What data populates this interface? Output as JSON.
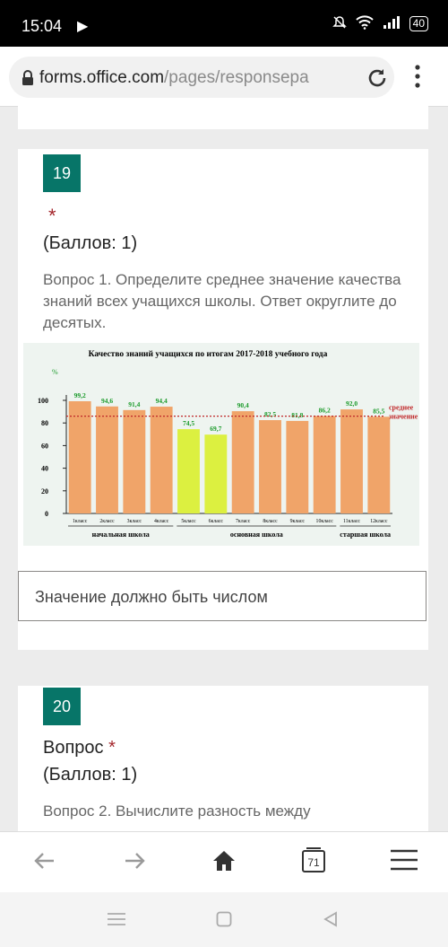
{
  "status_bar": {
    "time": "15:04",
    "battery": "40"
  },
  "browser": {
    "url_host": "forms.office.com",
    "url_path": "/pages/responsepa",
    "tab_count": "71"
  },
  "questions": [
    {
      "number": "19",
      "required_mark": "*",
      "points": "(Баллов: 1)",
      "description": "Вопрос 1. Определите среднее значение качества знаний всех учащихся школы. Ответ округлите до десятых.",
      "answer_placeholder": "Значение должно быть числом"
    },
    {
      "number": "20",
      "title": "Вопрос",
      "required_mark": "*",
      "points": "(Баллов: 1)",
      "description": "Вопрос 2. Вычислите разность между"
    }
  ],
  "chart_data": {
    "type": "bar",
    "title": "Качество знаний учащихся по итогам 2017-2018 учебного года",
    "ylabel": "%",
    "ylim": [
      0,
      100
    ],
    "yticks": [
      "0",
      "20",
      "40",
      "60",
      "80",
      "100"
    ],
    "categories": [
      "1класс",
      "2класс",
      "3класс",
      "4класс",
      "5класс",
      "6класс",
      "7класс",
      "8класс",
      "9класс",
      "10класс",
      "11класс",
      "12класс"
    ],
    "values": [
      99.2,
      94.6,
      91.4,
      94.4,
      74.5,
      69.7,
      90.4,
      82.5,
      81.8,
      86.2,
      92.0,
      85.5
    ],
    "value_labels": [
      "99,2",
      "94,6",
      "91,4",
      "94,4",
      "74,5",
      "69,7",
      "90,4",
      "82,5",
      "81,8",
      "86,2",
      "92,0",
      "85,5"
    ],
    "highlighted_indices": [
      4,
      5
    ],
    "average_line": 86,
    "average_label": [
      "среднее",
      "значение"
    ],
    "groups": [
      "начальная школа",
      "основная школа",
      "старшая школа"
    ],
    "colors": {
      "bar": "#f0a469",
      "highlight": "#dcf040",
      "value_label": "#1a9a2a",
      "average": "#c0282a",
      "background": "#eef4f0"
    },
    "grid": false
  }
}
